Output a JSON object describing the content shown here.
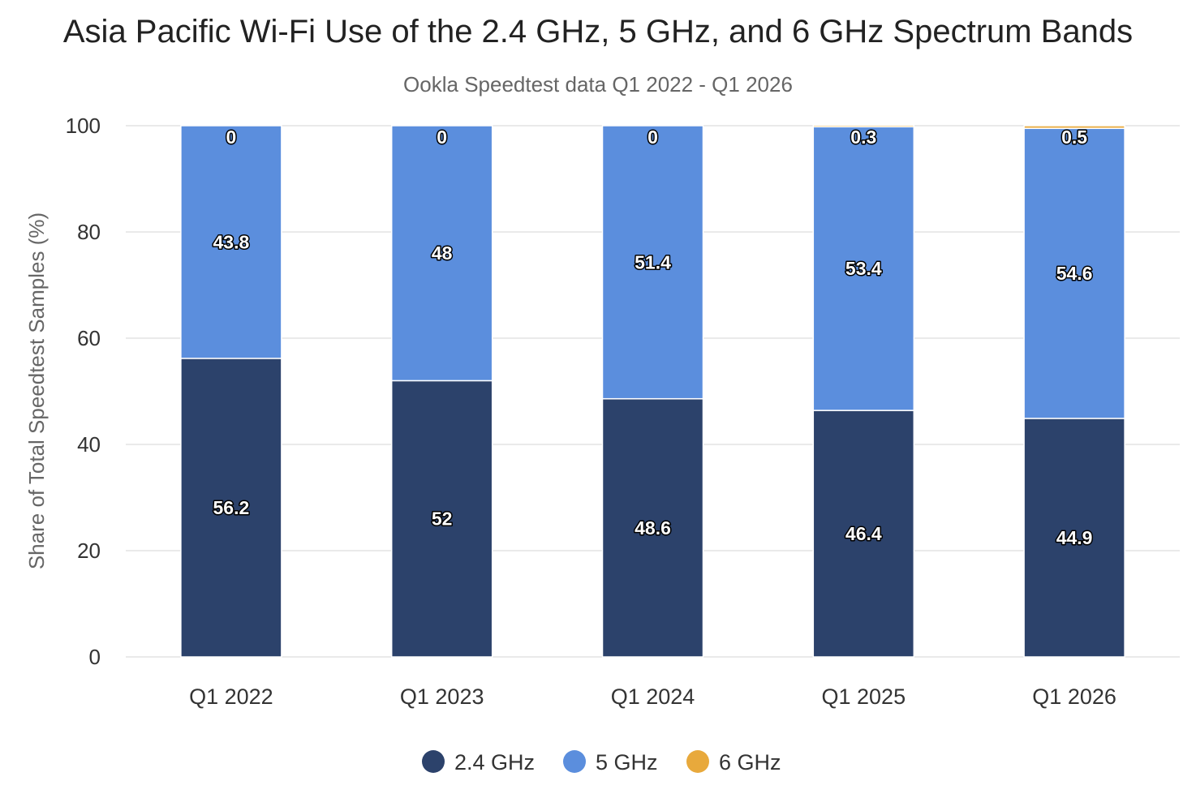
{
  "chart_data": {
    "type": "bar",
    "stacked": true,
    "title": "Asia Pacific Wi-Fi Use of the 2.4 GHz, 5 GHz, and 6 GHz Spectrum Bands",
    "subtitle": "Ookla Speedtest data Q1 2022 - Q1 2026",
    "ylabel": "Share of Total Speedtest Samples (%)",
    "ylim": [
      0,
      100
    ],
    "yticks": [
      "0",
      "20",
      "40",
      "60",
      "80",
      "100"
    ],
    "grid": true,
    "legend_position": "bottom",
    "categories": [
      "Q1 2022",
      "Q1 2023",
      "Q1 2024",
      "Q1 2025",
      "Q1 2026"
    ],
    "series": [
      {
        "name": "2.4 GHz",
        "color": "#2c426b",
        "values": [
          56.2,
          52,
          48.6,
          46.4,
          44.9
        ],
        "labels": [
          "56.2",
          "52",
          "48.6",
          "46.4",
          "44.9"
        ]
      },
      {
        "name": "5 GHz",
        "color": "#5b8edd",
        "values": [
          43.8,
          48,
          51.4,
          53.4,
          54.6
        ],
        "labels": [
          "43.8",
          "48",
          "51.4",
          "53.4",
          "54.6"
        ]
      },
      {
        "name": "6 GHz",
        "color": "#e8a93c",
        "values": [
          0,
          0,
          0,
          0.3,
          0.5
        ],
        "labels": [
          "0",
          "0",
          "0",
          "0.3",
          "0.5"
        ]
      }
    ]
  }
}
